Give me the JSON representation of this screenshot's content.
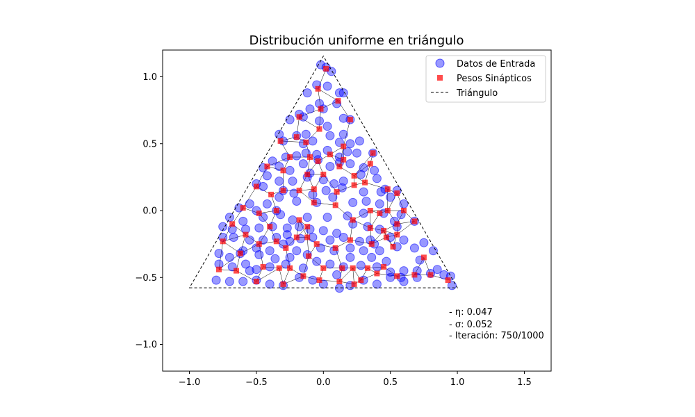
{
  "chart_data": {
    "type": "scatter",
    "title": "Distribución uniforme en triángulo",
    "xlabel": "",
    "ylabel": "",
    "xlim": [
      -1.2,
      1.7
    ],
    "ylim": [
      -1.2,
      1.2
    ],
    "xticks": [
      -1.0,
      -0.5,
      0.0,
      0.5,
      1.0,
      1.5
    ],
    "xtick_labels": [
      "−1.0",
      "−0.5",
      "0.0",
      "0.5",
      "1.0",
      "1.5"
    ],
    "yticks": [
      -1.0,
      -0.5,
      0.0,
      0.5,
      1.0
    ],
    "ytick_labels": [
      "−1.0",
      "−0.5",
      "0.0",
      "0.5",
      "1.0"
    ],
    "grid": false,
    "legend_position": "top-right",
    "legend": [
      {
        "label": "Datos de Entrada",
        "marker": "circle",
        "color": "#0000ff"
      },
      {
        "label": "Pesos Sinápticos",
        "marker": "square",
        "color": "#ff0000"
      },
      {
        "label": "Triángulo",
        "marker": "dashed-line",
        "color": "#000000"
      }
    ],
    "triangle": [
      [
        -1.0,
        -0.577
      ],
      [
        1.0,
        -0.577
      ],
      [
        0.0,
        1.155
      ]
    ],
    "series": [
      {
        "name": "Datos de Entrada",
        "marker": "circle",
        "color": "#0000ff",
        "points": [
          [
            -0.02,
            1.09
          ],
          [
            0.02,
            1.07
          ],
          [
            0.06,
            1.04
          ],
          [
            -0.12,
            0.88
          ],
          [
            -0.05,
            0.94
          ],
          [
            0.03,
            0.93
          ],
          [
            0.12,
            0.88
          ],
          [
            0.15,
            0.88
          ],
          [
            0.1,
            0.8
          ],
          [
            -0.03,
            0.8
          ],
          [
            -0.1,
            0.76
          ],
          [
            0.0,
            0.76
          ],
          [
            -0.18,
            0.72
          ],
          [
            -0.15,
            0.7
          ],
          [
            -0.25,
            0.68
          ],
          [
            -0.03,
            0.67
          ],
          [
            0.03,
            0.63
          ],
          [
            0.15,
            0.69
          ],
          [
            0.2,
            0.68
          ],
          [
            -0.2,
            0.56
          ],
          [
            -0.33,
            0.57
          ],
          [
            -0.13,
            0.57
          ],
          [
            -0.3,
            0.52
          ],
          [
            -0.08,
            0.52
          ],
          [
            -0.15,
            0.5
          ],
          [
            0.05,
            0.56
          ],
          [
            0.15,
            0.57
          ],
          [
            0.2,
            0.5
          ],
          [
            0.27,
            0.52
          ],
          [
            0.12,
            0.51
          ],
          [
            -0.28,
            0.4
          ],
          [
            -0.2,
            0.41
          ],
          [
            -0.13,
            0.43
          ],
          [
            -0.05,
            0.42
          ],
          [
            0.03,
            0.45
          ],
          [
            0.12,
            0.4
          ],
          [
            0.25,
            0.43
          ],
          [
            0.37,
            0.43
          ],
          [
            -0.38,
            0.37
          ],
          [
            -0.33,
            0.33
          ],
          [
            -0.45,
            0.32
          ],
          [
            -0.25,
            0.3
          ],
          [
            -0.15,
            0.35
          ],
          [
            -0.1,
            0.28
          ],
          [
            0.05,
            0.33
          ],
          [
            0.12,
            0.36
          ],
          [
            0.2,
            0.35
          ],
          [
            0.3,
            0.32
          ],
          [
            0.38,
            0.3
          ],
          [
            -0.5,
            0.2
          ],
          [
            -0.45,
            0.18
          ],
          [
            -0.33,
            0.22
          ],
          [
            -0.23,
            0.22
          ],
          [
            -0.12,
            0.25
          ],
          [
            0.0,
            0.23
          ],
          [
            0.15,
            0.22
          ],
          [
            0.28,
            0.27
          ],
          [
            0.4,
            0.24
          ],
          [
            -0.3,
            0.15
          ],
          [
            -0.22,
            0.13
          ],
          [
            -0.08,
            0.12
          ],
          [
            0.02,
            0.15
          ],
          [
            0.14,
            0.17
          ],
          [
            0.3,
            0.14
          ],
          [
            0.43,
            0.14
          ],
          [
            0.55,
            0.15
          ],
          [
            -0.55,
            0.05
          ],
          [
            -0.63,
            0.02
          ],
          [
            -0.5,
            0.0
          ],
          [
            -0.42,
            0.05
          ],
          [
            -0.33,
            0.1
          ],
          [
            -0.2,
            0.07
          ],
          [
            -0.05,
            0.06
          ],
          [
            0.07,
            0.1
          ],
          [
            0.22,
            0.06
          ],
          [
            0.32,
            0.07
          ],
          [
            0.42,
            0.05
          ],
          [
            0.5,
            0.1
          ],
          [
            0.6,
            0.05
          ],
          [
            -0.7,
            -0.05
          ],
          [
            -0.6,
            -0.08
          ],
          [
            -0.45,
            -0.05
          ],
          [
            -0.32,
            -0.03
          ],
          [
            -0.23,
            -0.07
          ],
          [
            -0.12,
            -0.05
          ],
          [
            0.03,
            -0.05
          ],
          [
            0.18,
            -0.04
          ],
          [
            0.3,
            -0.02
          ],
          [
            0.45,
            -0.02
          ],
          [
            0.58,
            -0.03
          ],
          [
            -0.75,
            -0.12
          ],
          [
            -0.68,
            -0.14
          ],
          [
            -0.58,
            -0.14
          ],
          [
            -0.48,
            -0.13
          ],
          [
            -0.38,
            -0.12
          ],
          [
            -0.27,
            -0.13
          ],
          [
            -0.18,
            -0.12
          ],
          [
            -0.1,
            -0.14
          ],
          [
            0.0,
            -0.15
          ],
          [
            0.1,
            -0.17
          ],
          [
            0.22,
            -0.1
          ],
          [
            0.33,
            -0.12
          ],
          [
            0.42,
            -0.14
          ],
          [
            0.55,
            -0.12
          ],
          [
            0.68,
            -0.08
          ],
          [
            -0.75,
            -0.2
          ],
          [
            -0.67,
            -0.2
          ],
          [
            -0.55,
            -0.22
          ],
          [
            -0.45,
            -0.22
          ],
          [
            -0.35,
            -0.2
          ],
          [
            -0.25,
            -0.23
          ],
          [
            -0.17,
            -0.21
          ],
          [
            -0.08,
            -0.2
          ],
          [
            0.05,
            -0.22
          ],
          [
            0.15,
            -0.2
          ],
          [
            0.27,
            -0.23
          ],
          [
            0.38,
            -0.25
          ],
          [
            0.5,
            -0.2
          ],
          [
            0.6,
            -0.22
          ],
          [
            0.75,
            -0.24
          ],
          [
            -0.78,
            -0.32
          ],
          [
            -0.7,
            -0.35
          ],
          [
            -0.6,
            -0.3
          ],
          [
            -0.5,
            -0.28
          ],
          [
            -0.4,
            -0.3
          ],
          [
            -0.3,
            -0.25
          ],
          [
            -0.2,
            -0.3
          ],
          [
            -0.12,
            -0.33
          ],
          [
            -0.02,
            -0.28
          ],
          [
            0.08,
            -0.3
          ],
          [
            0.2,
            -0.28
          ],
          [
            0.3,
            -0.3
          ],
          [
            0.42,
            -0.3
          ],
          [
            0.55,
            -0.27
          ],
          [
            0.68,
            -0.28
          ],
          [
            0.82,
            -0.3
          ],
          [
            -0.78,
            -0.4
          ],
          [
            -0.68,
            -0.42
          ],
          [
            -0.58,
            -0.4
          ],
          [
            -0.5,
            -0.44
          ],
          [
            -0.4,
            -0.42
          ],
          [
            -0.28,
            -0.4
          ],
          [
            -0.15,
            -0.43
          ],
          [
            -0.05,
            -0.38
          ],
          [
            0.05,
            -0.4
          ],
          [
            0.15,
            -0.42
          ],
          [
            0.28,
            -0.41
          ],
          [
            0.4,
            -0.42
          ],
          [
            0.5,
            -0.46
          ],
          [
            0.6,
            -0.45
          ],
          [
            0.7,
            -0.45
          ],
          [
            0.85,
            -0.44
          ],
          [
            -0.8,
            -0.52
          ],
          [
            -0.7,
            -0.53
          ],
          [
            -0.6,
            -0.53
          ],
          [
            -0.5,
            -0.52
          ],
          [
            -0.4,
            -0.55
          ],
          [
            -0.3,
            -0.56
          ],
          [
            -0.18,
            -0.5
          ],
          [
            -0.08,
            -0.52
          ],
          [
            0.0,
            -0.55
          ],
          [
            0.1,
            -0.48
          ],
          [
            0.2,
            -0.56
          ],
          [
            0.3,
            -0.52
          ],
          [
            0.4,
            -0.55
          ],
          [
            0.5,
            -0.5
          ],
          [
            0.6,
            -0.53
          ],
          [
            0.7,
            -0.5
          ],
          [
            0.8,
            -0.47
          ],
          [
            0.9,
            -0.48
          ],
          [
            0.95,
            -0.49
          ],
          [
            0.96,
            -0.56
          ],
          [
            -0.62,
            -0.32
          ],
          [
            -0.48,
            -0.33
          ],
          [
            -0.36,
            -0.36
          ],
          [
            -0.25,
            -0.35
          ],
          [
            0.36,
            -0.35
          ],
          [
            0.47,
            -0.38
          ],
          [
            0.2,
            -0.35
          ],
          [
            -0.55,
            -0.45
          ],
          [
            0.12,
            -0.58
          ],
          [
            0.72,
            -0.37
          ],
          [
            0.58,
            -0.5
          ],
          [
            -0.35,
            0.0
          ],
          [
            0.18,
            0.44
          ],
          [
            -0.42,
            0.26
          ],
          [
            0.46,
            0.16
          ],
          [
            0.35,
            -0.22
          ],
          [
            0.53,
            -0.08
          ],
          [
            -0.04,
            0.38
          ],
          [
            0.08,
            0.2
          ],
          [
            -0.27,
            -0.18
          ]
        ]
      },
      {
        "name": "Pesos Sinápticos",
        "marker": "square",
        "color": "#ff0000",
        "points": [
          [
            0.02,
            1.06
          ],
          [
            -0.04,
            0.91
          ],
          [
            0.11,
            0.82
          ],
          [
            -0.02,
            0.76
          ],
          [
            -0.18,
            0.7
          ],
          [
            0.2,
            0.68
          ],
          [
            -0.03,
            0.61
          ],
          [
            -0.2,
            0.55
          ],
          [
            -0.32,
            0.52
          ],
          [
            -0.13,
            0.51
          ],
          [
            0.05,
            0.42
          ],
          [
            0.15,
            0.38
          ],
          [
            -0.25,
            0.4
          ],
          [
            -0.1,
            0.4
          ],
          [
            -0.04,
            0.37
          ],
          [
            0.12,
            0.33
          ],
          [
            0.23,
            0.26
          ],
          [
            0.37,
            0.43
          ],
          [
            -0.42,
            0.33
          ],
          [
            -0.3,
            0.3
          ],
          [
            -0.12,
            0.27
          ],
          [
            0.0,
            0.27
          ],
          [
            0.31,
            0.21
          ],
          [
            0.23,
            0.19
          ],
          [
            -0.5,
            0.18
          ],
          [
            -0.39,
            0.12
          ],
          [
            -0.3,
            0.15
          ],
          [
            -0.18,
            0.15
          ],
          [
            -0.07,
            0.16
          ],
          [
            0.1,
            0.14
          ],
          [
            0.48,
            0.16
          ],
          [
            0.55,
            0.13
          ],
          [
            -0.6,
            0.02
          ],
          [
            -0.48,
            -0.02
          ],
          [
            -0.35,
            0.0
          ],
          [
            -0.07,
            0.06
          ],
          [
            0.09,
            0.04
          ],
          [
            0.35,
            0.0
          ],
          [
            0.48,
            0.0
          ],
          [
            0.6,
            0.0
          ],
          [
            -0.68,
            -0.1
          ],
          [
            -0.4,
            -0.12
          ],
          [
            -0.18,
            -0.07
          ],
          [
            -0.12,
            -0.12
          ],
          [
            0.22,
            -0.07
          ],
          [
            0.35,
            -0.13
          ],
          [
            0.45,
            -0.15
          ],
          [
            0.55,
            -0.1
          ],
          [
            0.68,
            -0.08
          ],
          [
            -0.75,
            -0.23
          ],
          [
            -0.58,
            -0.18
          ],
          [
            -0.48,
            -0.25
          ],
          [
            -0.35,
            -0.23
          ],
          [
            -0.28,
            -0.28
          ],
          [
            -0.2,
            -0.2
          ],
          [
            -0.12,
            -0.2
          ],
          [
            0.09,
            -0.28
          ],
          [
            0.2,
            -0.22
          ],
          [
            0.36,
            -0.25
          ],
          [
            0.47,
            -0.2
          ],
          [
            0.55,
            -0.18
          ],
          [
            0.52,
            -0.27
          ],
          [
            0.75,
            -0.35
          ],
          [
            -0.78,
            -0.44
          ],
          [
            -0.65,
            -0.45
          ],
          [
            -0.62,
            -0.32
          ],
          [
            -0.45,
            -0.42
          ],
          [
            -0.33,
            -0.43
          ],
          [
            -0.25,
            -0.43
          ],
          [
            -0.11,
            -0.34
          ],
          [
            0.0,
            -0.43
          ],
          [
            0.14,
            -0.43
          ],
          [
            0.22,
            -0.43
          ],
          [
            0.33,
            -0.43
          ],
          [
            0.45,
            -0.42
          ],
          [
            0.55,
            -0.49
          ],
          [
            0.68,
            -0.48
          ],
          [
            0.8,
            -0.48
          ],
          [
            0.93,
            -0.52
          ],
          [
            -0.5,
            -0.53
          ],
          [
            -0.3,
            -0.55
          ],
          [
            -0.15,
            -0.49
          ],
          [
            -0.03,
            -0.52
          ],
          [
            0.12,
            -0.53
          ],
          [
            0.23,
            -0.55
          ],
          [
            0.28,
            -0.52
          ],
          [
            0.4,
            -0.47
          ],
          [
            0.15,
            0.48
          ],
          [
            0.35,
            0.35
          ],
          [
            0.42,
            -0.02
          ],
          [
            -0.05,
            -0.25
          ]
        ]
      }
    ],
    "annotations": [
      {
        "text": "- η: 0.047"
      },
      {
        "text": "- σ: 0.052"
      },
      {
        "text": "- Iteración: 750/1000"
      }
    ]
  }
}
